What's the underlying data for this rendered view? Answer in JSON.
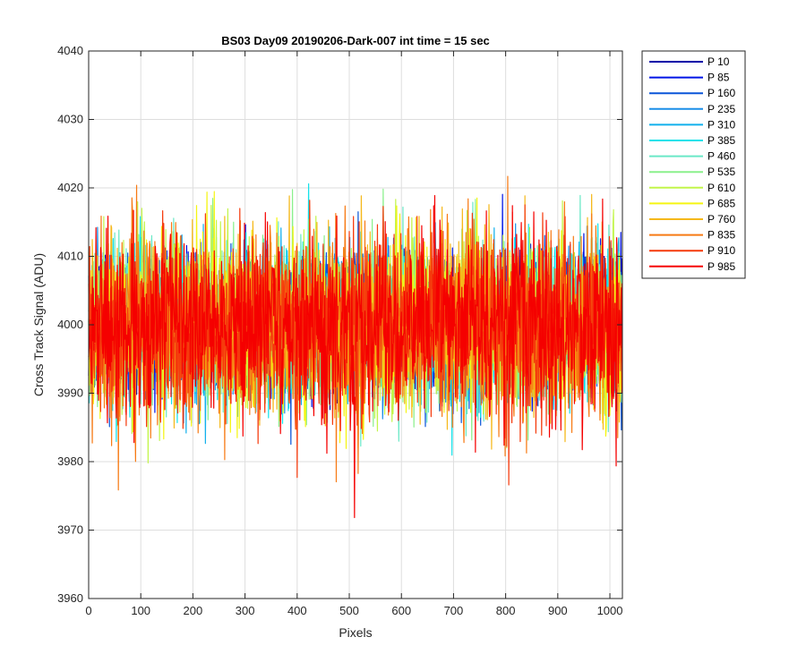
{
  "chart_data": {
    "type": "line",
    "title": "BS03 Day09 20190206-Dark-007 int time = 15 sec",
    "xlabel": "Pixels",
    "ylabel": "Cross Track Signal (ADU)",
    "xlim": [
      0,
      1024
    ],
    "ylim": [
      3960,
      4040
    ],
    "xticks": [
      0,
      100,
      200,
      300,
      400,
      500,
      600,
      700,
      800,
      900,
      1000
    ],
    "yticks": [
      3960,
      3970,
      3980,
      3990,
      4000,
      4010,
      4020,
      4030,
      4040
    ],
    "grid": true,
    "legend_position": "outside-top-right",
    "n_pixels": 1024,
    "noise_center": 4000,
    "noise_range_typical": [
      3980,
      4020
    ],
    "series": [
      {
        "name": "P 10",
        "color": "#0000a8"
      },
      {
        "name": "P 85",
        "color": "#0014e6"
      },
      {
        "name": "P 160",
        "color": "#0a55d8"
      },
      {
        "name": "P 235",
        "color": "#1a8ee8"
      },
      {
        "name": "P 310",
        "color": "#12b0ec"
      },
      {
        "name": "P 385",
        "color": "#14e2ea"
      },
      {
        "name": "P 460",
        "color": "#6ae8c6"
      },
      {
        "name": "P 535",
        "color": "#8af08c"
      },
      {
        "name": "P 610",
        "color": "#c2f54a"
      },
      {
        "name": "P 685",
        "color": "#f5f512"
      },
      {
        "name": "P 760",
        "color": "#f5b81a"
      },
      {
        "name": "P 835",
        "color": "#f77a14"
      },
      {
        "name": "P 910",
        "color": "#f53a0c"
      },
      {
        "name": "P 985",
        "color": "#f50000"
      }
    ]
  }
}
